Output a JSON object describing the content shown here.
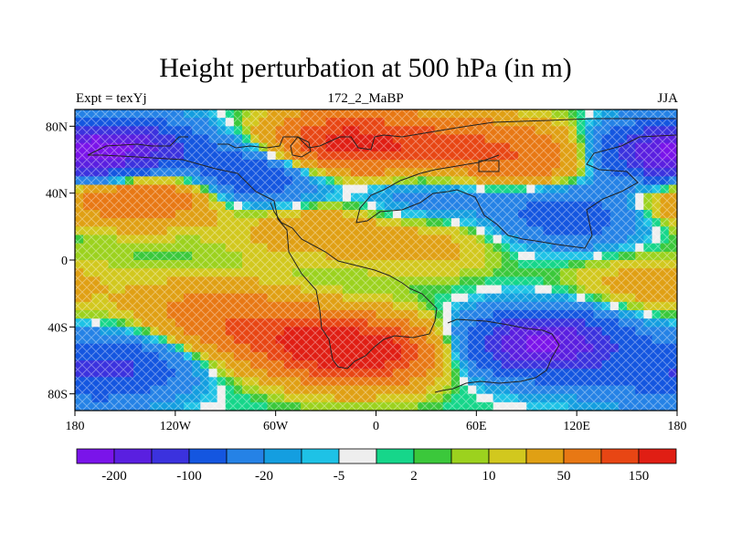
{
  "figure": {
    "title": "Height perturbation at 500 hPa (in m)",
    "left_label": "Expt = texYj",
    "center_label": "172_2_MaBP",
    "right_label": "JJA"
  },
  "chart_data": {
    "type": "heatmap",
    "projection": "cylindrical-equidistant",
    "xlim": [
      -180,
      180
    ],
    "ylim": [
      -90,
      90
    ],
    "x_ticks": [
      {
        "value": -180,
        "label": "180"
      },
      {
        "value": -120,
        "label": "120W"
      },
      {
        "value": -60,
        "label": "60W"
      },
      {
        "value": 0,
        "label": "0"
      },
      {
        "value": 60,
        "label": "60E"
      },
      {
        "value": 120,
        "label": "120E"
      },
      {
        "value": 180,
        "label": "180"
      }
    ],
    "y_ticks": [
      {
        "value": 80,
        "label": "80N"
      },
      {
        "value": 40,
        "label": "40N"
      },
      {
        "value": 0,
        "label": "0"
      },
      {
        "value": -40,
        "label": "40S"
      },
      {
        "value": -80,
        "label": "80S"
      }
    ],
    "colorbar": {
      "colors": [
        "#7a14ea",
        "#5a1fe0",
        "#3b32de",
        "#1456e0",
        "#2582e6",
        "#149ee0",
        "#1ec2e6",
        "#eeeeee",
        "#16d68a",
        "#3bc83b",
        "#9cd21e",
        "#d2c81e",
        "#e0a014",
        "#e87814",
        "#e84614",
        "#e01e14"
      ],
      "labels": [
        {
          "value": "-200",
          "after_box": 1
        },
        {
          "value": "-100",
          "after_box": 3
        },
        {
          "value": "-20",
          "after_box": 5
        },
        {
          "value": "-5",
          "after_box": 7
        },
        {
          "value": "2",
          "after_box": 9
        },
        {
          "value": "10",
          "after_box": 11
        },
        {
          "value": "50",
          "after_box": 13
        },
        {
          "value": "150",
          "after_box": 15
        }
      ]
    },
    "anomalies": [
      {
        "lon": -150,
        "lat": 65,
        "value": -160
      },
      {
        "lon": -75,
        "lat": 50,
        "value": -110
      },
      {
        "lon": -130,
        "lat": 42,
        "value": 110
      },
      {
        "lon": -20,
        "lat": 70,
        "value": 170
      },
      {
        "lon": 45,
        "lat": 68,
        "value": 90
      },
      {
        "lon": 100,
        "lat": 60,
        "value": 80
      },
      {
        "lon": 170,
        "lat": 62,
        "value": -160
      },
      {
        "lon": 30,
        "lat": 40,
        "value": -40
      },
      {
        "lon": 120,
        "lat": 28,
        "value": -90
      },
      {
        "lon": 175,
        "lat": 40,
        "value": 60
      },
      {
        "lon": -40,
        "lat": 20,
        "value": 40
      },
      {
        "lon": 30,
        "lat": 10,
        "value": 30
      },
      {
        "lon": -100,
        "lat": -30,
        "value": 60
      },
      {
        "lon": -160,
        "lat": -65,
        "value": -110
      },
      {
        "lon": -10,
        "lat": -55,
        "value": 200
      },
      {
        "lon": -60,
        "lat": -45,
        "value": 90
      },
      {
        "lon": 100,
        "lat": -50,
        "value": -210
      },
      {
        "lon": 160,
        "lat": -15,
        "value": 30
      },
      {
        "lon": 150,
        "lat": -75,
        "value": -20
      }
    ]
  }
}
